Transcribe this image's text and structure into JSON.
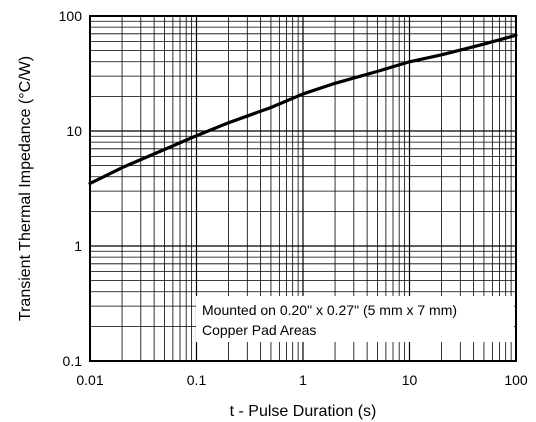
{
  "chart_data": {
    "type": "line",
    "xscale": "log",
    "yscale": "log",
    "xlim": [
      0.01,
      100
    ],
    "ylim": [
      0.1,
      100
    ],
    "grid": true,
    "xlabel": "t - Pulse Duration (s)",
    "ylabel": "Transient Thermal Impedance (°C/W)",
    "x_ticks": [
      "0.01",
      "0.1",
      "1",
      "10",
      "100"
    ],
    "y_ticks": [
      "0.1",
      "1",
      "10",
      "100"
    ],
    "annotation": {
      "lines": [
        "Mounted on 0.20\" x 0.27\" (5 mm x 7 mm)",
        "Copper Pad Areas"
      ],
      "placement": "bottom-right"
    },
    "series": [
      {
        "x": [
          0.01,
          0.02,
          0.05,
          0.1,
          0.2,
          0.5,
          1,
          2,
          5,
          10,
          20,
          50,
          100
        ],
        "y": [
          3.5,
          4.8,
          6.9,
          9.1,
          11.8,
          16.0,
          21.0,
          26.0,
          33.0,
          40.0,
          46.0,
          57.0,
          68.0
        ]
      }
    ],
    "colors": {
      "line": "#000000",
      "grid": "#000000",
      "background": "#ffffff"
    }
  }
}
